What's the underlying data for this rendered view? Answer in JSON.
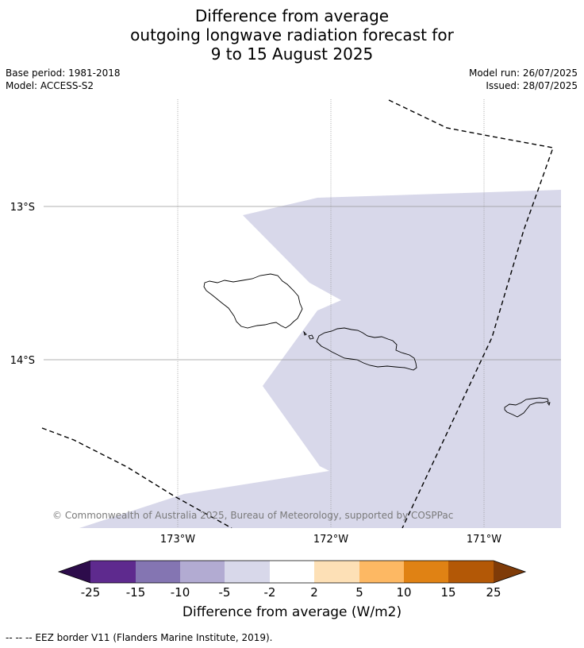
{
  "title": {
    "line1": "Difference from average",
    "line2": "outgoing longwave radiation forecast for",
    "line3": "9 to 15 August 2025"
  },
  "meta": {
    "base_period": "Base period: 1981-2018",
    "model": "Model: ACCESS-S2",
    "model_run": "Model run: 26/07/2025",
    "issued": "Issued: 28/07/2025"
  },
  "map": {
    "lat_labels": [
      "13°S",
      "14°S"
    ],
    "lon_labels": [
      "173°W",
      "172°W",
      "171°W"
    ],
    "anomaly_fill_color": "#d8d8ea",
    "gridline_color": "#999999",
    "eez_line_color": "#000000",
    "copyright": "© Commonwealth of Australia 2025, Bureau of Meteorology, supported by COSPPac"
  },
  "colorbar": {
    "tick_labels": [
      "-25",
      "-15",
      "-10",
      "-5",
      "-2",
      "2",
      "5",
      "10",
      "15",
      "25"
    ],
    "colors": [
      "#2d0c4b",
      "#5e2a8e",
      "#8475b2",
      "#b2abd2",
      "#d8d8ea",
      "#ffffff",
      "#fde0b6",
      "#fdb863",
      "#e08214",
      "#b35806",
      "#7f3b08"
    ],
    "title": "Difference from average (W/m2)"
  },
  "footnote": "--  --  -- EEZ border V11 (Flanders Marine Institute, 2019)."
}
